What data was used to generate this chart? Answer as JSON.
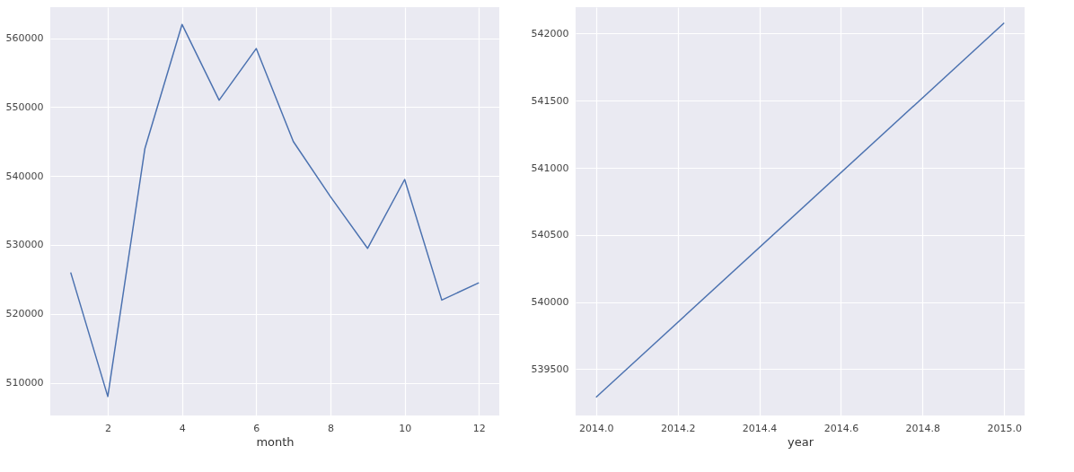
{
  "chart_data": [
    {
      "type": "line",
      "xlabel": "month",
      "x": [
        1,
        2,
        3,
        4,
        5,
        6,
        7,
        8,
        9,
        10,
        11,
        12
      ],
      "series": [
        {
          "color": "#4c72b0",
          "values": [
            526000,
            508000,
            544000,
            562000,
            551000,
            558500,
            545000,
            537000,
            529500,
            539500,
            522000,
            524500
          ]
        }
      ],
      "xlim": [
        0.45,
        12.55
      ],
      "xticks": [
        2,
        4,
        6,
        8,
        10,
        12
      ],
      "ylim": [
        505250,
        564500
      ],
      "yticks": [
        510000,
        520000,
        530000,
        540000,
        550000,
        560000
      ],
      "grid": true
    },
    {
      "type": "line",
      "xlabel": "year",
      "x": [
        2014,
        2015
      ],
      "series": [
        {
          "color": "#4c72b0",
          "values": [
            539290,
            542080
          ]
        }
      ],
      "xlim": [
        2013.95,
        2015.05
      ],
      "xticks": [
        {
          "value": 2014,
          "label": "2014.0"
        },
        {
          "value": 2014.2,
          "label": "2014.2"
        },
        {
          "value": 2014.4,
          "label": "2014.4"
        },
        {
          "value": 2014.6,
          "label": "2014.6"
        },
        {
          "value": 2014.8,
          "label": "2014.8"
        },
        {
          "value": 2015,
          "label": "2015.0"
        }
      ],
      "ylim": [
        539155,
        542197
      ],
      "yticks": [
        539500,
        540000,
        540500,
        541000,
        541500,
        542000
      ],
      "grid": true
    }
  ]
}
